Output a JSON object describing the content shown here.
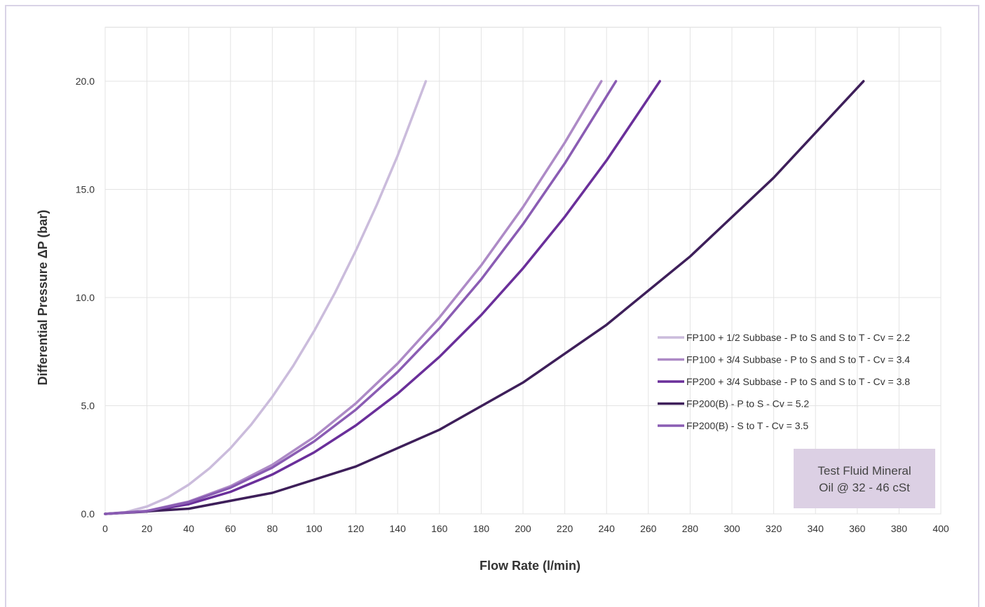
{
  "chart_data": {
    "type": "line",
    "title": "",
    "xlabel": "Flow Rate (l/min)",
    "ylabel": "Differential Pressure ΔP (bar)",
    "xlim": [
      0,
      400
    ],
    "ylim": [
      0,
      20
    ],
    "x_ticks": [
      0,
      20,
      40,
      60,
      80,
      100,
      120,
      140,
      160,
      180,
      200,
      220,
      240,
      260,
      280,
      300,
      320,
      340,
      360,
      380,
      400
    ],
    "x_tick_labels": [
      "0",
      "20",
      "40",
      "60",
      "80",
      "100",
      "120",
      "140",
      "160",
      "180",
      "200",
      "220",
      "240",
      "260",
      "280",
      "300",
      "320",
      "340",
      "360",
      "380",
      "400"
    ],
    "y_ticks": [
      0,
      5,
      10,
      15,
      20
    ],
    "y_tick_labels": [
      "0.0",
      "5.0",
      "10.0",
      "15.0",
      "20.0"
    ],
    "grid": true,
    "legend_position": "right",
    "series": [
      {
        "name": "FP100 + 1/2 Subbase - P to S and S to T - Cv = 2.2",
        "color": "#cbbcdc",
        "x": [
          0,
          10,
          20,
          30,
          40,
          50,
          60,
          70,
          80,
          90,
          100,
          110,
          120,
          130,
          140,
          153.5
        ],
        "y": [
          0,
          0.08,
          0.34,
          0.76,
          1.35,
          2.11,
          3.04,
          4.14,
          5.41,
          6.84,
          8.45,
          10.22,
          12.17,
          14.28,
          16.56,
          20.0
        ]
      },
      {
        "name": "FP100 + 3/4 Subbase - P to S and S to T - Cv = 3.4",
        "color": "#ad8ac6",
        "x": [
          0,
          20,
          40,
          60,
          80,
          100,
          120,
          140,
          160,
          180,
          200,
          220,
          237.5
        ],
        "y": [
          0,
          0.14,
          0.57,
          1.28,
          2.27,
          3.55,
          5.11,
          6.95,
          9.08,
          11.49,
          14.18,
          17.16,
          20.0
        ]
      },
      {
        "name": "FP200 + 3/4 Subbase - P to S and S to T - Cv = 3.8",
        "color": "#6a2f9a",
        "x": [
          0,
          20,
          40,
          60,
          80,
          100,
          120,
          140,
          160,
          180,
          200,
          220,
          240,
          265.5
        ],
        "y": [
          0,
          0.11,
          0.45,
          1.02,
          1.82,
          2.84,
          4.09,
          5.56,
          7.26,
          9.19,
          11.35,
          13.73,
          16.34,
          20.0
        ]
      },
      {
        "name": "FP200(B) - P to S - Cv = 5.2",
        "color": "#3e1f5a",
        "x": [
          0,
          40,
          80,
          120,
          160,
          200,
          240,
          280,
          320,
          363
        ],
        "y": [
          0,
          0.24,
          0.97,
          2.19,
          3.89,
          6.07,
          8.74,
          11.9,
          15.54,
          20.0
        ]
      },
      {
        "name": "FP200(B) - S to T - Cv = 3.5",
        "color": "#8a5cb3",
        "x": [
          0,
          20,
          40,
          60,
          80,
          100,
          120,
          140,
          160,
          180,
          200,
          220,
          244.5
        ],
        "y": [
          0,
          0.13,
          0.54,
          1.21,
          2.14,
          3.35,
          4.82,
          6.56,
          8.57,
          10.84,
          13.39,
          16.2,
          20.0
        ]
      }
    ],
    "annotation": {
      "lines": [
        "Test Fluid Mineral",
        "Oil @ 32 - 46 cSt"
      ],
      "background": "#dcd0e4"
    }
  }
}
